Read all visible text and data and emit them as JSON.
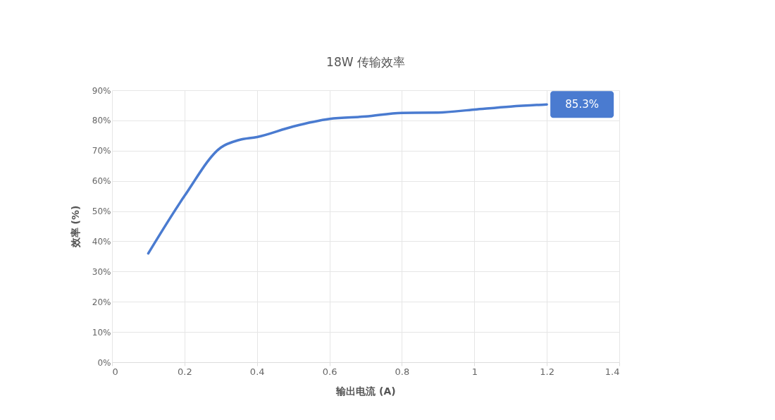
{
  "chart_data": {
    "type": "line",
    "title": "18W 传输效率",
    "xlabel": "输出电流 (A)",
    "ylabel": "效率 (%)",
    "x": [
      0.1,
      0.2,
      0.3,
      0.35,
      0.4,
      0.5,
      0.6,
      0.7,
      0.8,
      0.9,
      1.0,
      1.1,
      1.2
    ],
    "series": [
      {
        "color": "#4a7bd0",
        "values": [
          36,
          55,
          71,
          73.5,
          74.5,
          78,
          80.5,
          81.3,
          82.5,
          82.6,
          83.6,
          84.6,
          85.3
        ],
        "value_labels": [
          null,
          null,
          null,
          null,
          null,
          null,
          null,
          null,
          null,
          null,
          null,
          null,
          "85.3%"
        ]
      }
    ],
    "xlim": [
      0,
      1.4
    ],
    "xticks": [
      0,
      0.2,
      0.4,
      0.6,
      0.8,
      1,
      1.2,
      1.4
    ],
    "ylim": [
      0,
      90
    ],
    "yticks": [
      {
        "value": 0,
        "label": "0%"
      },
      {
        "value": 10,
        "label": "10%"
      },
      {
        "value": 20,
        "label": "20%"
      },
      {
        "value": 30,
        "label": "30%"
      },
      {
        "value": 40,
        "label": "40%"
      },
      {
        "value": 50,
        "label": "50%"
      },
      {
        "value": 60,
        "label": "60%"
      },
      {
        "value": 70,
        "label": "70%"
      },
      {
        "value": 80,
        "label": "80%"
      },
      {
        "value": 90,
        "label": "90%"
      }
    ],
    "grid": true,
    "marker": "none",
    "line_style": "solid"
  }
}
